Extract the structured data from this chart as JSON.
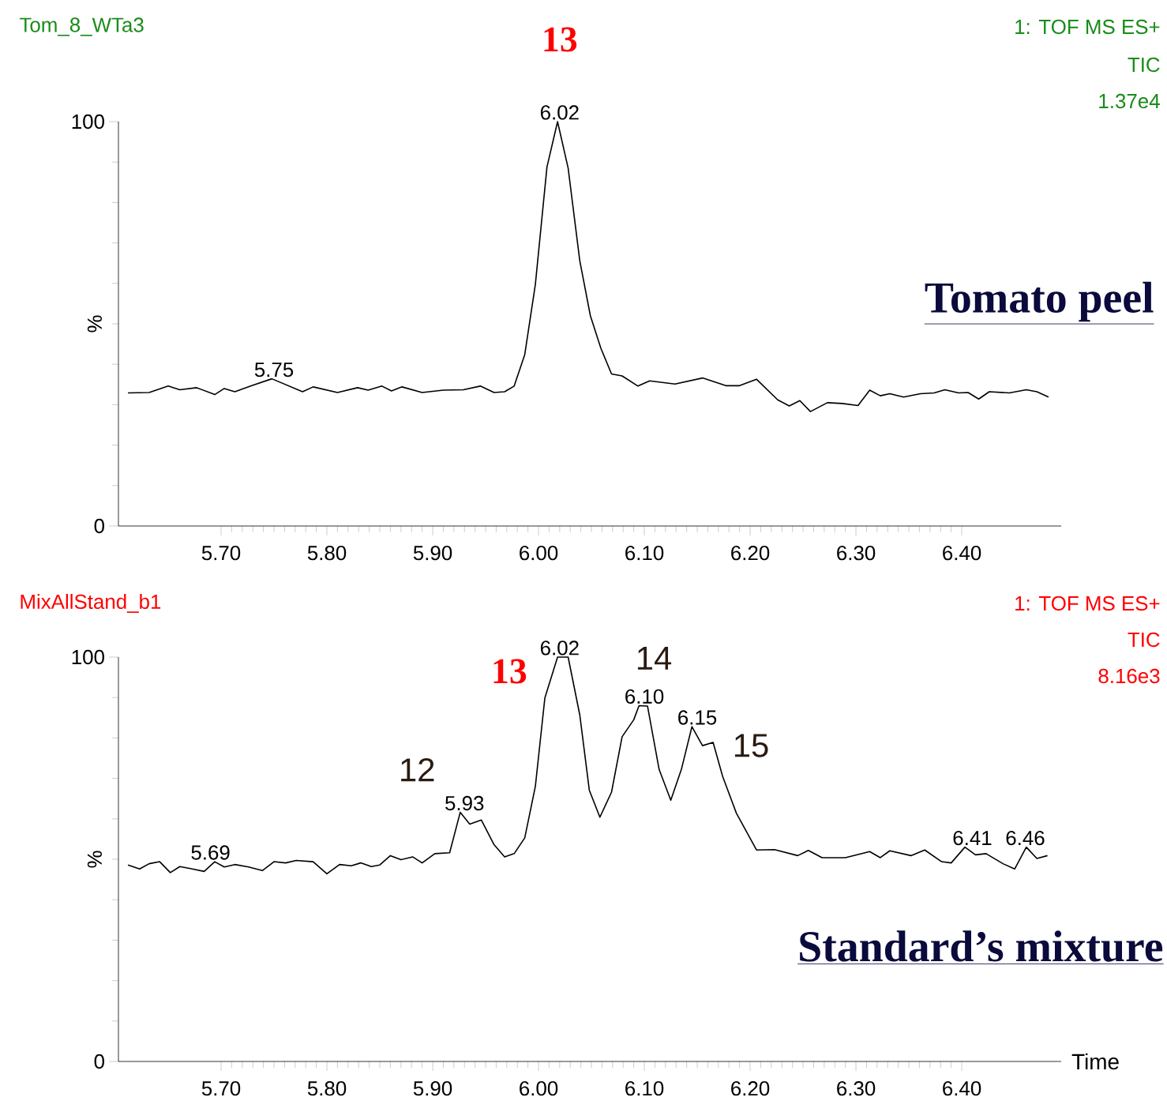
{
  "chart_data": [
    {
      "type": "line",
      "title": "Tom_8_WTa3",
      "ylabel": "%",
      "xlim": [
        5.603,
        6.494
      ],
      "ylim": [
        0,
        100
      ],
      "xticks": [
        {
          "value": 5.7,
          "label": "5.70"
        },
        {
          "value": 5.8,
          "label": "5.80"
        },
        {
          "value": 5.9,
          "label": "5.90"
        },
        {
          "value": 6.0,
          "label": "6.00"
        },
        {
          "value": 6.1,
          "label": "6.10"
        },
        {
          "value": 6.2,
          "label": "6.20"
        },
        {
          "value": 6.3,
          "label": "6.30"
        },
        {
          "value": 6.4,
          "label": "6.40"
        }
      ],
      "yticks": [
        0,
        100
      ],
      "series": [
        {
          "color": "#000000",
          "x": [
            5.612,
            5.632,
            5.65,
            5.661,
            5.677,
            5.694,
            5.703,
            5.713,
            5.729,
            5.748,
            5.777,
            5.787,
            5.81,
            5.829,
            5.839,
            5.852,
            5.861,
            5.871,
            5.89,
            5.91,
            5.929,
            5.945,
            5.958,
            5.968,
            5.977,
            5.987,
            5.997,
            6.008,
            6.018,
            6.028,
            6.039,
            6.049,
            6.059,
            6.069,
            6.079,
            6.094,
            6.105,
            6.129,
            6.155,
            6.177,
            6.19,
            6.206,
            6.226,
            6.237,
            6.247,
            6.257,
            6.273,
            6.287,
            6.302,
            6.313,
            6.323,
            6.332,
            6.345,
            6.361,
            6.374,
            6.384,
            6.397,
            6.406,
            6.416,
            6.426,
            6.445,
            6.461,
            6.471,
            6.482
          ],
          "values": [
            32.9,
            33.0,
            34.6,
            33.7,
            34.2,
            32.5,
            34.0,
            33.2,
            34.7,
            36.4,
            33.2,
            34.4,
            33.0,
            34.2,
            33.6,
            34.6,
            33.4,
            34.4,
            33.0,
            33.6,
            33.7,
            34.6,
            33.0,
            33.2,
            34.6,
            42.4,
            59.7,
            88.8,
            100,
            88.5,
            65.6,
            52.0,
            43.9,
            37.6,
            37.1,
            34.6,
            35.9,
            35.1,
            36.6,
            34.7,
            34.7,
            36.3,
            31.2,
            29.7,
            31.0,
            28.3,
            30.5,
            30.3,
            29.8,
            33.6,
            32.2,
            32.7,
            31.9,
            32.7,
            32.9,
            33.7,
            32.9,
            33.0,
            31.4,
            33.2,
            32.9,
            33.7,
            33.2,
            31.9
          ]
        }
      ],
      "annotations": [
        {
          "text": "13",
          "x": 6.02,
          "y": 100
        },
        {
          "text": "6.02",
          "x": 6.02,
          "y": 100
        },
        {
          "text": "5.75",
          "x": 5.75,
          "y": 36.4
        },
        "1: TOF MS ES+",
        "TIC",
        "1.37e4",
        "Tomato peel"
      ]
    },
    {
      "type": "line",
      "title": "MixAllStand_b1",
      "xlabel": "Time",
      "ylabel": "%",
      "xlim": [
        5.603,
        6.494
      ],
      "ylim": [
        0,
        100
      ],
      "xticks": [
        {
          "value": 5.7,
          "label": "5.70"
        },
        {
          "value": 5.8,
          "label": "5.80"
        },
        {
          "value": 5.9,
          "label": "5.90"
        },
        {
          "value": 6.0,
          "label": "6.00"
        },
        {
          "value": 6.1,
          "label": "6.10"
        },
        {
          "value": 6.2,
          "label": "6.20"
        },
        {
          "value": 6.3,
          "label": "6.30"
        },
        {
          "value": 6.4,
          "label": "6.40"
        }
      ],
      "yticks": [
        0,
        100
      ],
      "series": [
        {
          "color": "#000000",
          "x": [
            5.612,
            5.623,
            5.632,
            5.642,
            5.652,
            5.661,
            5.671,
            5.684,
            5.694,
            5.703,
            5.713,
            5.726,
            5.739,
            5.75,
            5.761,
            5.771,
            5.787,
            5.8,
            5.812,
            5.823,
            5.832,
            5.842,
            5.85,
            5.86,
            5.87,
            5.881,
            5.89,
            5.902,
            5.916,
            5.926,
            5.935,
            5.946,
            5.958,
            5.968,
            5.977,
            5.987,
            5.997,
            6.006,
            6.018,
            6.028,
            6.039,
            6.048,
            6.058,
            6.069,
            6.079,
            6.09,
            6.095,
            6.103,
            6.114,
            6.125,
            6.135,
            6.145,
            6.155,
            6.165,
            6.174,
            6.187,
            6.206,
            6.223,
            6.245,
            6.255,
            6.268,
            6.29,
            6.313,
            6.323,
            6.332,
            6.352,
            6.365,
            6.381,
            6.39,
            6.403,
            6.413,
            6.423,
            6.439,
            6.45,
            6.461,
            6.471,
            6.481
          ],
          "values": [
            48.6,
            47.6,
            48.9,
            49.4,
            46.7,
            48.2,
            47.7,
            47.0,
            49.4,
            48.1,
            48.7,
            48.1,
            47.2,
            49.4,
            49.1,
            49.7,
            49.4,
            46.4,
            48.7,
            48.4,
            49.1,
            48.2,
            48.6,
            50.9,
            49.9,
            50.6,
            49.1,
            51.4,
            51.6,
            61.6,
            58.7,
            59.7,
            53.6,
            50.6,
            51.4,
            55.3,
            68.0,
            89.9,
            100,
            100,
            85.7,
            67.1,
            60.4,
            66.6,
            80.3,
            84.5,
            88.0,
            87.9,
            72.2,
            64.6,
            72.2,
            82.8,
            78.1,
            78.9,
            70.5,
            61.4,
            52.3,
            52.4,
            50.9,
            52.2,
            50.4,
            50.4,
            51.9,
            50.4,
            52.1,
            50.9,
            52.3,
            49.4,
            49.1,
            53.0,
            51.1,
            51.4,
            48.9,
            47.6,
            53.0,
            50.2,
            50.9
          ]
        }
      ],
      "annotations": [
        "1: TOF MS ES+",
        "TIC",
        "8.16e3",
        {
          "text": "5.69",
          "x": 5.69,
          "y": 49.4
        },
        {
          "text": "5.93",
          "x": 5.93,
          "y": 61.6
        },
        {
          "text": "6.02",
          "x": 6.02,
          "y": 100
        },
        {
          "text": "6.10",
          "x": 6.1,
          "y": 88.0
        },
        {
          "text": "6.15",
          "x": 6.15,
          "y": 82.8
        },
        {
          "text": "6.41",
          "x": 6.41,
          "y": 53.0
        },
        {
          "text": "6.46",
          "x": 6.46,
          "y": 53.0
        },
        {
          "text": "12",
          "x": 5.93,
          "y": 61.6
        },
        {
          "text": "13",
          "x": 6.02,
          "y": 100
        },
        {
          "text": "14",
          "x": 6.1,
          "y": 88.0
        },
        {
          "text": "15",
          "x": 6.15,
          "y": 82.8
        },
        "Standard’s mixture"
      ]
    }
  ]
}
